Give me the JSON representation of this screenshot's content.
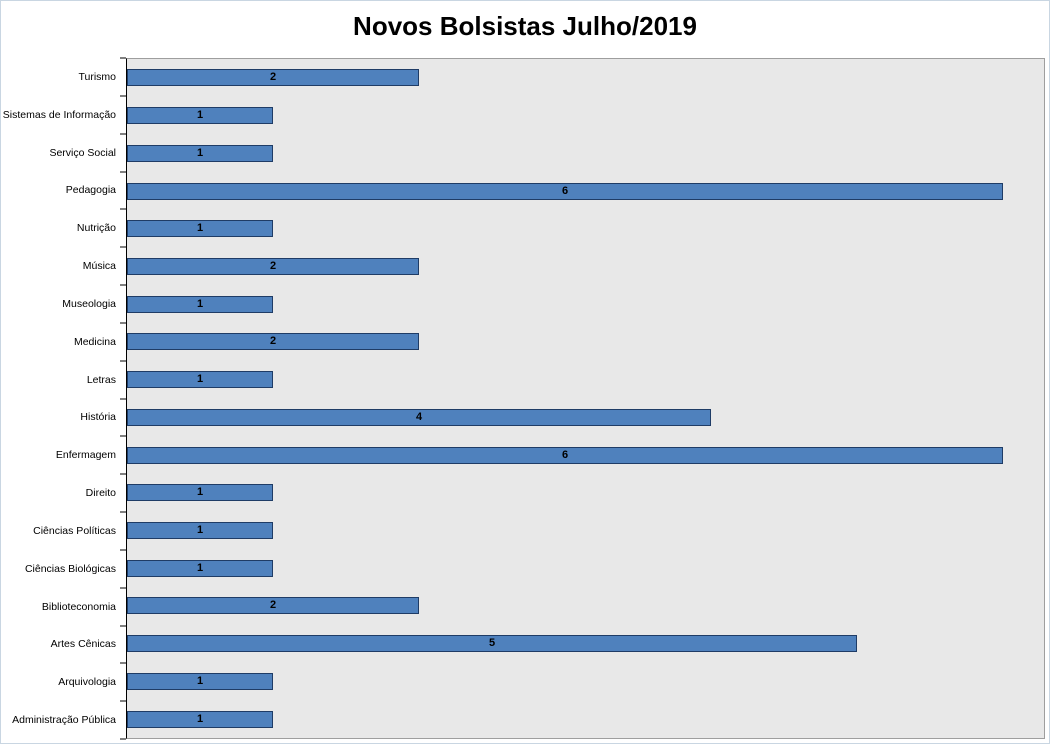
{
  "chart_data": {
    "type": "bar",
    "orientation": "horizontal",
    "title": "Novos Bolsistas Julho/2019",
    "xlabel": "",
    "ylabel": "",
    "categories": [
      "Turismo",
      "Sistemas de Informação",
      "Serviço Social",
      "Pedagogia",
      "Nutrição",
      "Música",
      "Museologia",
      "Medicina",
      "Letras",
      "História",
      "Enfermagem",
      "Direito",
      "Ciências Políticas",
      "Ciências Biológicas",
      "Biblioteconomia",
      "Artes Cênicas",
      "Arquivologia",
      "Administração Pública"
    ],
    "values": [
      2,
      1,
      1,
      6,
      1,
      2,
      1,
      2,
      1,
      4,
      6,
      1,
      1,
      1,
      2,
      5,
      1,
      1
    ],
    "xlim": [
      0,
      6.28
    ],
    "grid": false,
    "legend": false,
    "data_labels_position": "center",
    "style": {
      "bar_fill": "#4f81bd",
      "bar_border": "#1f3c66",
      "plot_bg": "#e8e8e8",
      "title_color": "#000000"
    }
  }
}
